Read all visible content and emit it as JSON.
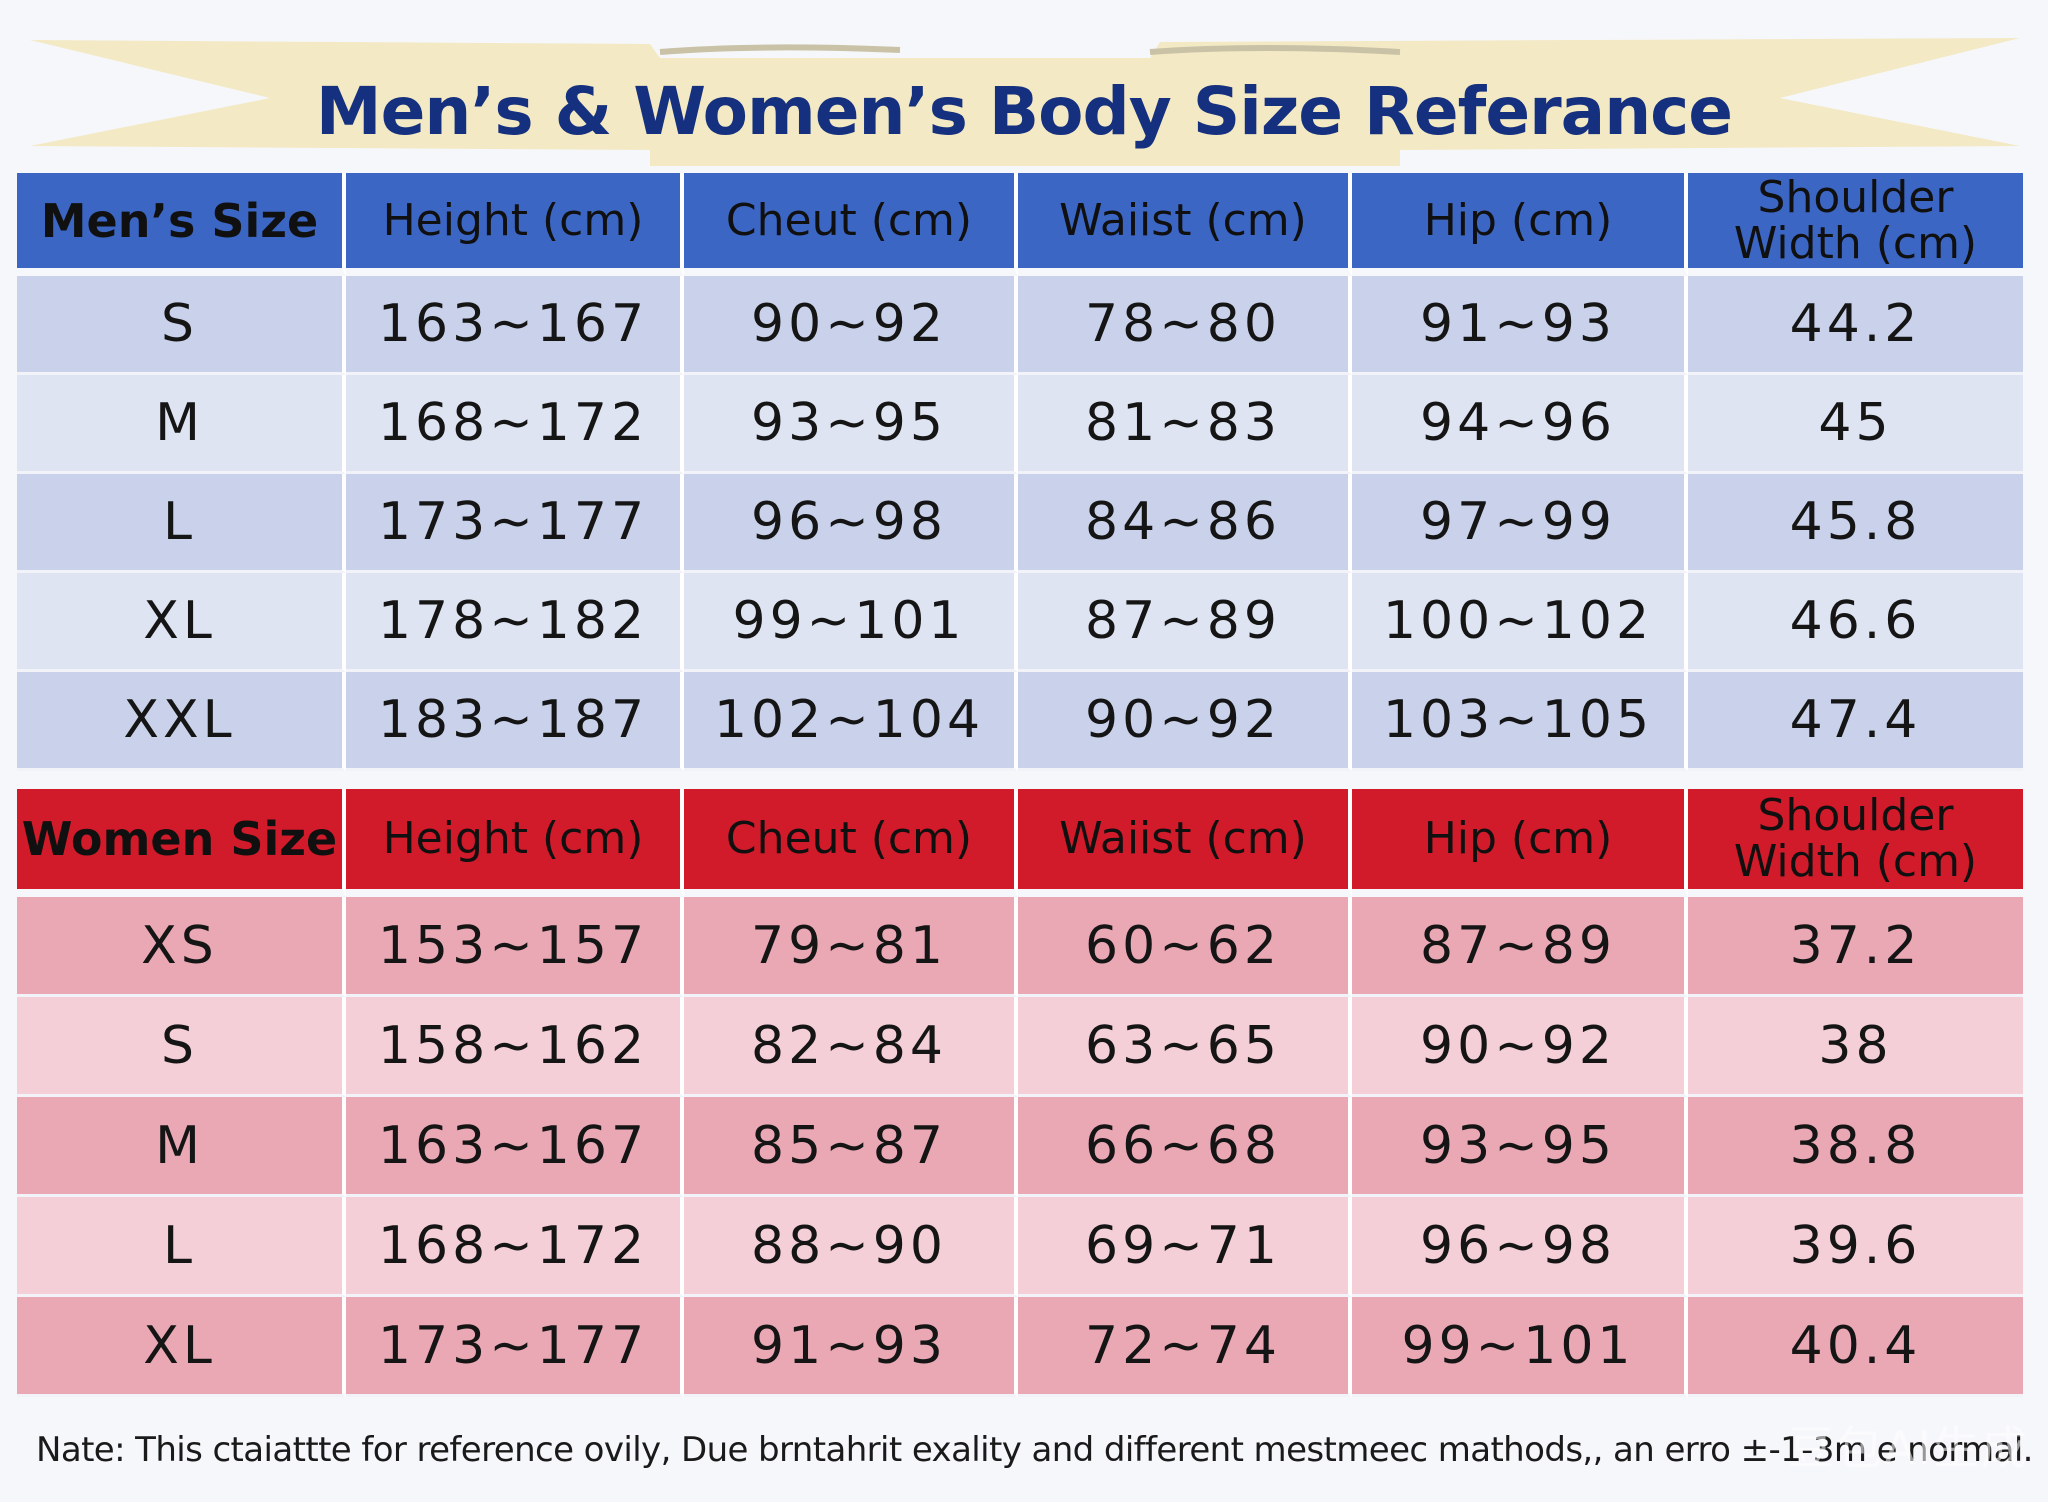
{
  "title": "Men’s & Women’s Body Size Referance",
  "colors": {
    "men_header": "#3c66c4",
    "women_header": "#d11a2a",
    "title": "#15307e",
    "banner": "#f3e9c4"
  },
  "men_table": {
    "headers": [
      "Men’s Size",
      "Height  (cm)",
      "Cheut  (cm)",
      "Waiist  (cm)",
      "Hip (cm)",
      "Shoulder Width (cm)"
    ],
    "rows": [
      [
        "S",
        "163~167",
        "90~92",
        "78~80",
        "91~93",
        "44.2"
      ],
      [
        "M",
        "168~172",
        "93~95",
        "81~83",
        "94~96",
        "45"
      ],
      [
        "L",
        "173~177",
        "96~98",
        "84~86",
        "97~99",
        "45.8"
      ],
      [
        "XL",
        "178~182",
        "99~101",
        "87~89",
        "100~102",
        "46.6"
      ],
      [
        "XXL",
        "183~187",
        "102~104",
        "90~92",
        "103~105",
        "47.4"
      ]
    ]
  },
  "women_table": {
    "headers": [
      "Women Size",
      "Height (cm)",
      "Cheut  (cm)",
      "Waiist (cm)",
      "Hip (cm)",
      "Shoulder Width (cm)"
    ],
    "rows": [
      [
        "XS",
        "153~157",
        "79~81",
        "60~62",
        "87~89",
        "37.2"
      ],
      [
        "S",
        "158~162",
        "82~84",
        "63~65",
        "90~92",
        "38"
      ],
      [
        "M",
        "163~167",
        "85~87",
        "66~68",
        "93~95",
        "38.8"
      ],
      [
        "L",
        "168~172",
        "88~90",
        "69~71",
        "96~98",
        "39.6"
      ],
      [
        "XL",
        "173~177",
        "91~93",
        "72~74",
        "99~101",
        "40.4"
      ]
    ]
  },
  "note": "Nate: This ctaiattte for reference ovily, Due brntahrit  exality and different mestmeec mathods,, an erro ±-1-3m e normal.",
  "watermark": "豆包AI生成"
}
